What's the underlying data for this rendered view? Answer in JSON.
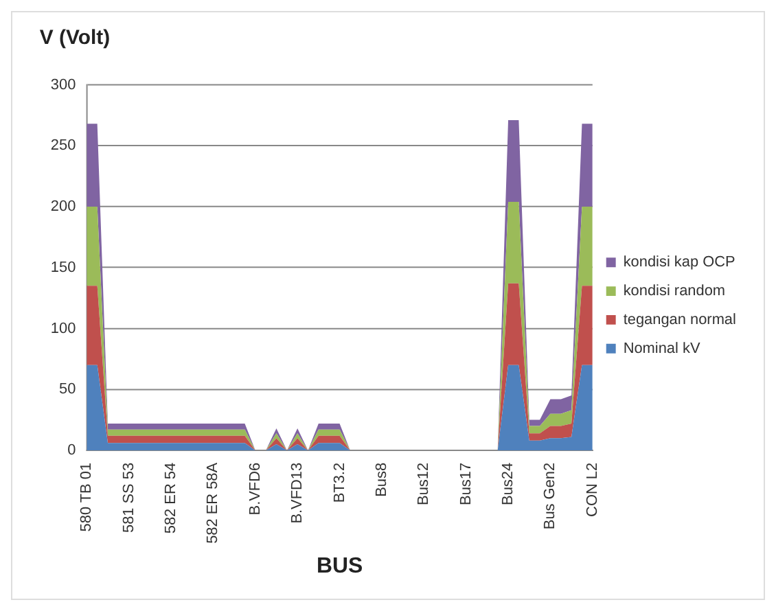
{
  "chart_data": {
    "type": "area",
    "title": "V (Volt)",
    "xlabel": "BUS",
    "stacked": true,
    "grid": "y",
    "legend": "right",
    "marker": "none",
    "categories": [
      "580 TB 01",
      null,
      null,
      null,
      "581 SS 53",
      null,
      null,
      null,
      "582 ER 54",
      null,
      null,
      null,
      "582 ER 58A",
      null,
      null,
      null,
      "B.VFD6",
      null,
      null,
      null,
      "B.VFD13",
      null,
      null,
      null,
      "BT3.2",
      null,
      null,
      null,
      "Bus8",
      null,
      null,
      null,
      "Bus12",
      null,
      null,
      null,
      "Bus17",
      null,
      null,
      null,
      "Bus24",
      null,
      null,
      null,
      "Bus Gen2",
      null,
      null,
      null,
      "CON L2"
    ],
    "ylim": [
      0,
      300
    ],
    "yticks": [
      0,
      50,
      100,
      150,
      200,
      250,
      300
    ],
    "series": [
      {
        "name": "Nominal kV",
        "color": "#4f81bd",
        "values": [
          70,
          70,
          6,
          6,
          6,
          6,
          6,
          6,
          6,
          6,
          6,
          6,
          6,
          6,
          6,
          6,
          0,
          0,
          5,
          0,
          5,
          0,
          6,
          6,
          6,
          0,
          0,
          0,
          0,
          0,
          0,
          0,
          0,
          0,
          0,
          0,
          0,
          0,
          0,
          0,
          70,
          70,
          8,
          8,
          10,
          10,
          11,
          70,
          70
        ]
      },
      {
        "name": "tegangan normal",
        "color": "#c0504d",
        "values": [
          65,
          65,
          6,
          6,
          6,
          6,
          6,
          6,
          6,
          6,
          6,
          6,
          6,
          6,
          6,
          6,
          0,
          0,
          5,
          0,
          5,
          0,
          6,
          6,
          6,
          0,
          0,
          0,
          0,
          0,
          0,
          0,
          0,
          0,
          0,
          0,
          0,
          0,
          0,
          0,
          67,
          67,
          6,
          6,
          10,
          10,
          11,
          65,
          65
        ]
      },
      {
        "name": "kondisi random",
        "color": "#9bbb59",
        "values": [
          65,
          65,
          5,
          5,
          5,
          5,
          5,
          5,
          5,
          5,
          5,
          5,
          5,
          5,
          5,
          5,
          0,
          0,
          4,
          0,
          4,
          0,
          5,
          5,
          5,
          0,
          0,
          0,
          0,
          0,
          0,
          0,
          0,
          0,
          0,
          0,
          0,
          0,
          0,
          0,
          67,
          67,
          6,
          6,
          10,
          10,
          11,
          65,
          65
        ]
      },
      {
        "name": "kondisi kap OCP",
        "color": "#8064a2",
        "values": [
          68,
          68,
          5,
          5,
          5,
          5,
          5,
          5,
          5,
          5,
          5,
          5,
          5,
          5,
          5,
          5,
          0,
          0,
          4,
          0,
          4,
          0,
          5,
          5,
          5,
          0,
          0,
          0,
          0,
          0,
          0,
          0,
          0,
          0,
          0,
          0,
          0,
          0,
          0,
          0,
          67,
          67,
          5,
          5,
          12,
          12,
          12,
          68,
          68
        ]
      }
    ]
  }
}
